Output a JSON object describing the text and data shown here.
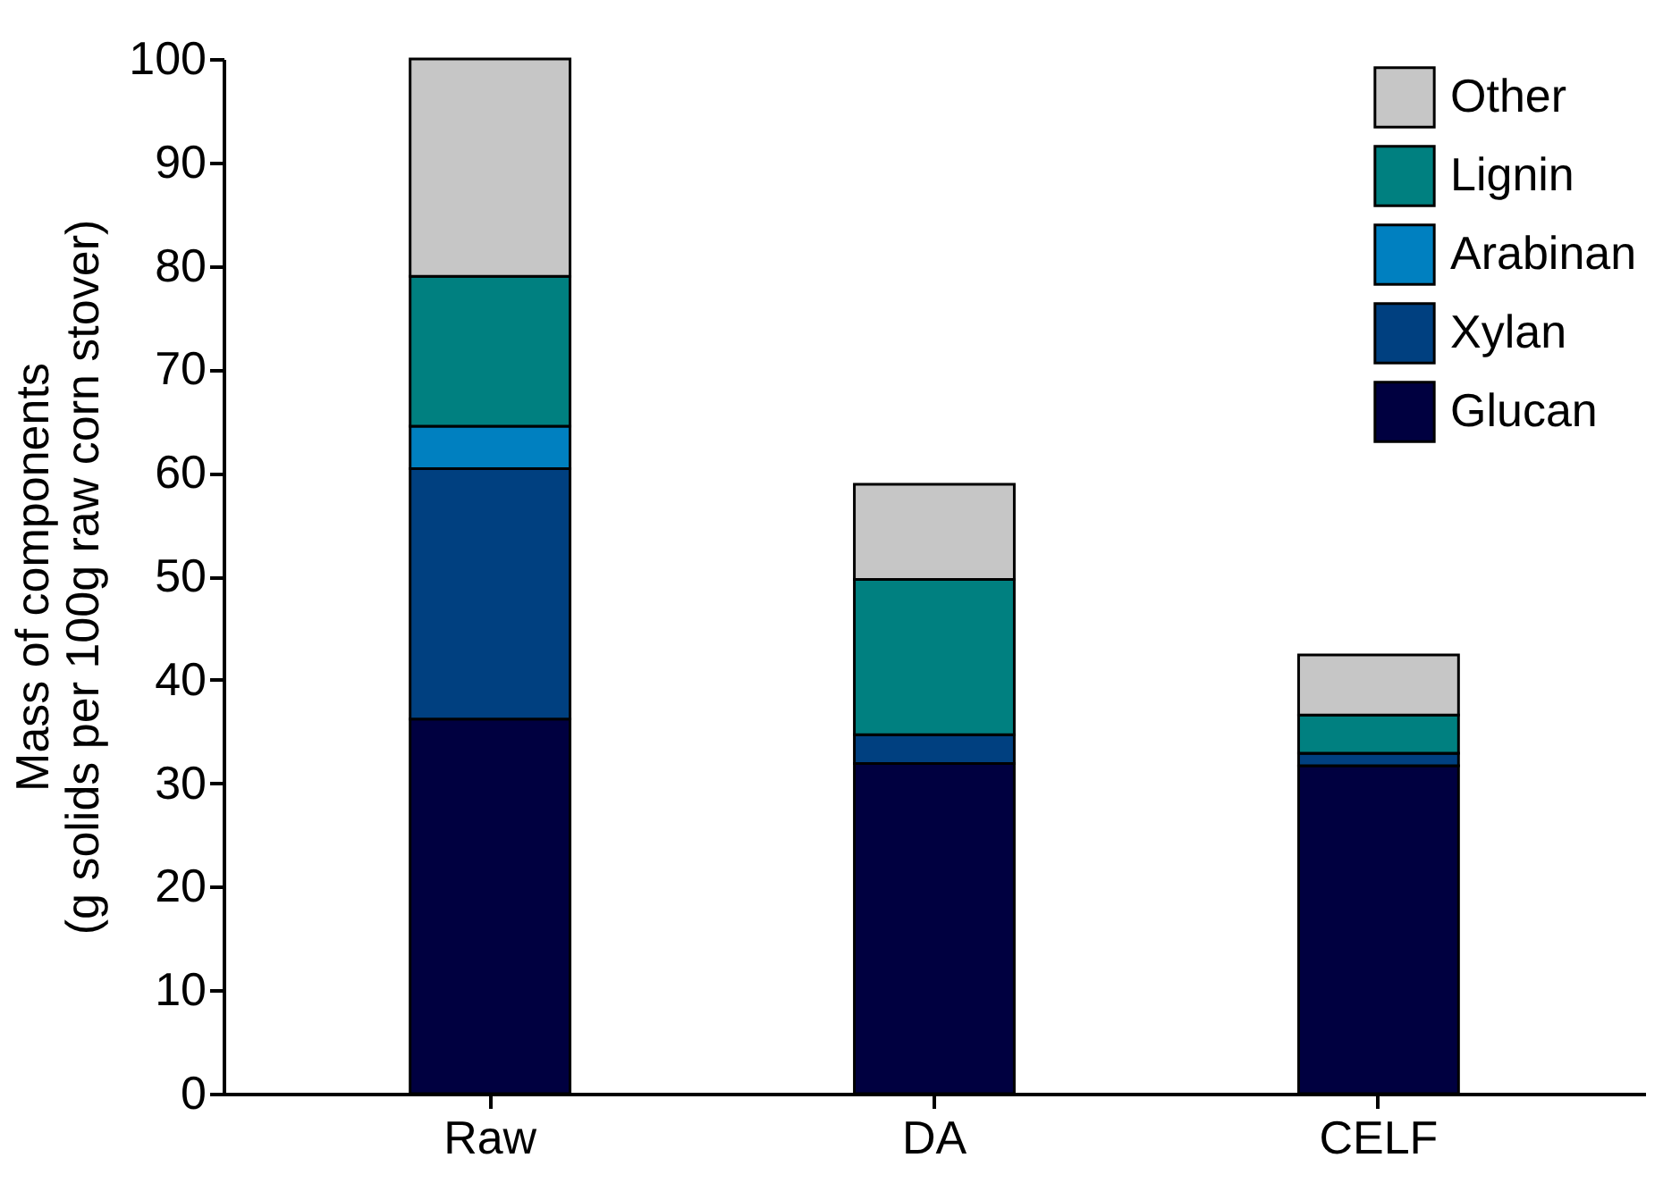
{
  "chart_data": {
    "type": "bar",
    "stacked": true,
    "ylabel": "Mass of components\n(g solids per 100g raw corn stover)",
    "categories": [
      "Raw",
      "DA",
      "CELF"
    ],
    "series": [
      {
        "name": "Glucan",
        "color": "#000040",
        "values": [
          36.2,
          31.9,
          31.7
        ]
      },
      {
        "name": "Xylan",
        "color": "#004080",
        "values": [
          24.2,
          2.8,
          1.2
        ]
      },
      {
        "name": "Arabinan",
        "color": "#0080c0",
        "values": [
          4.1,
          0,
          0
        ]
      },
      {
        "name": "Lignin",
        "color": "#008080",
        "values": [
          14.5,
          15.0,
          3.7
        ]
      },
      {
        "name": "Other",
        "color": "#c6c6c6",
        "values": [
          21.0,
          9.2,
          5.8
        ]
      }
    ],
    "ylim": [
      0,
      100
    ],
    "yticks": [
      0,
      10,
      20,
      30,
      40,
      50,
      60,
      70,
      80,
      90,
      100
    ],
    "legend": "top right",
    "grid": false
  }
}
